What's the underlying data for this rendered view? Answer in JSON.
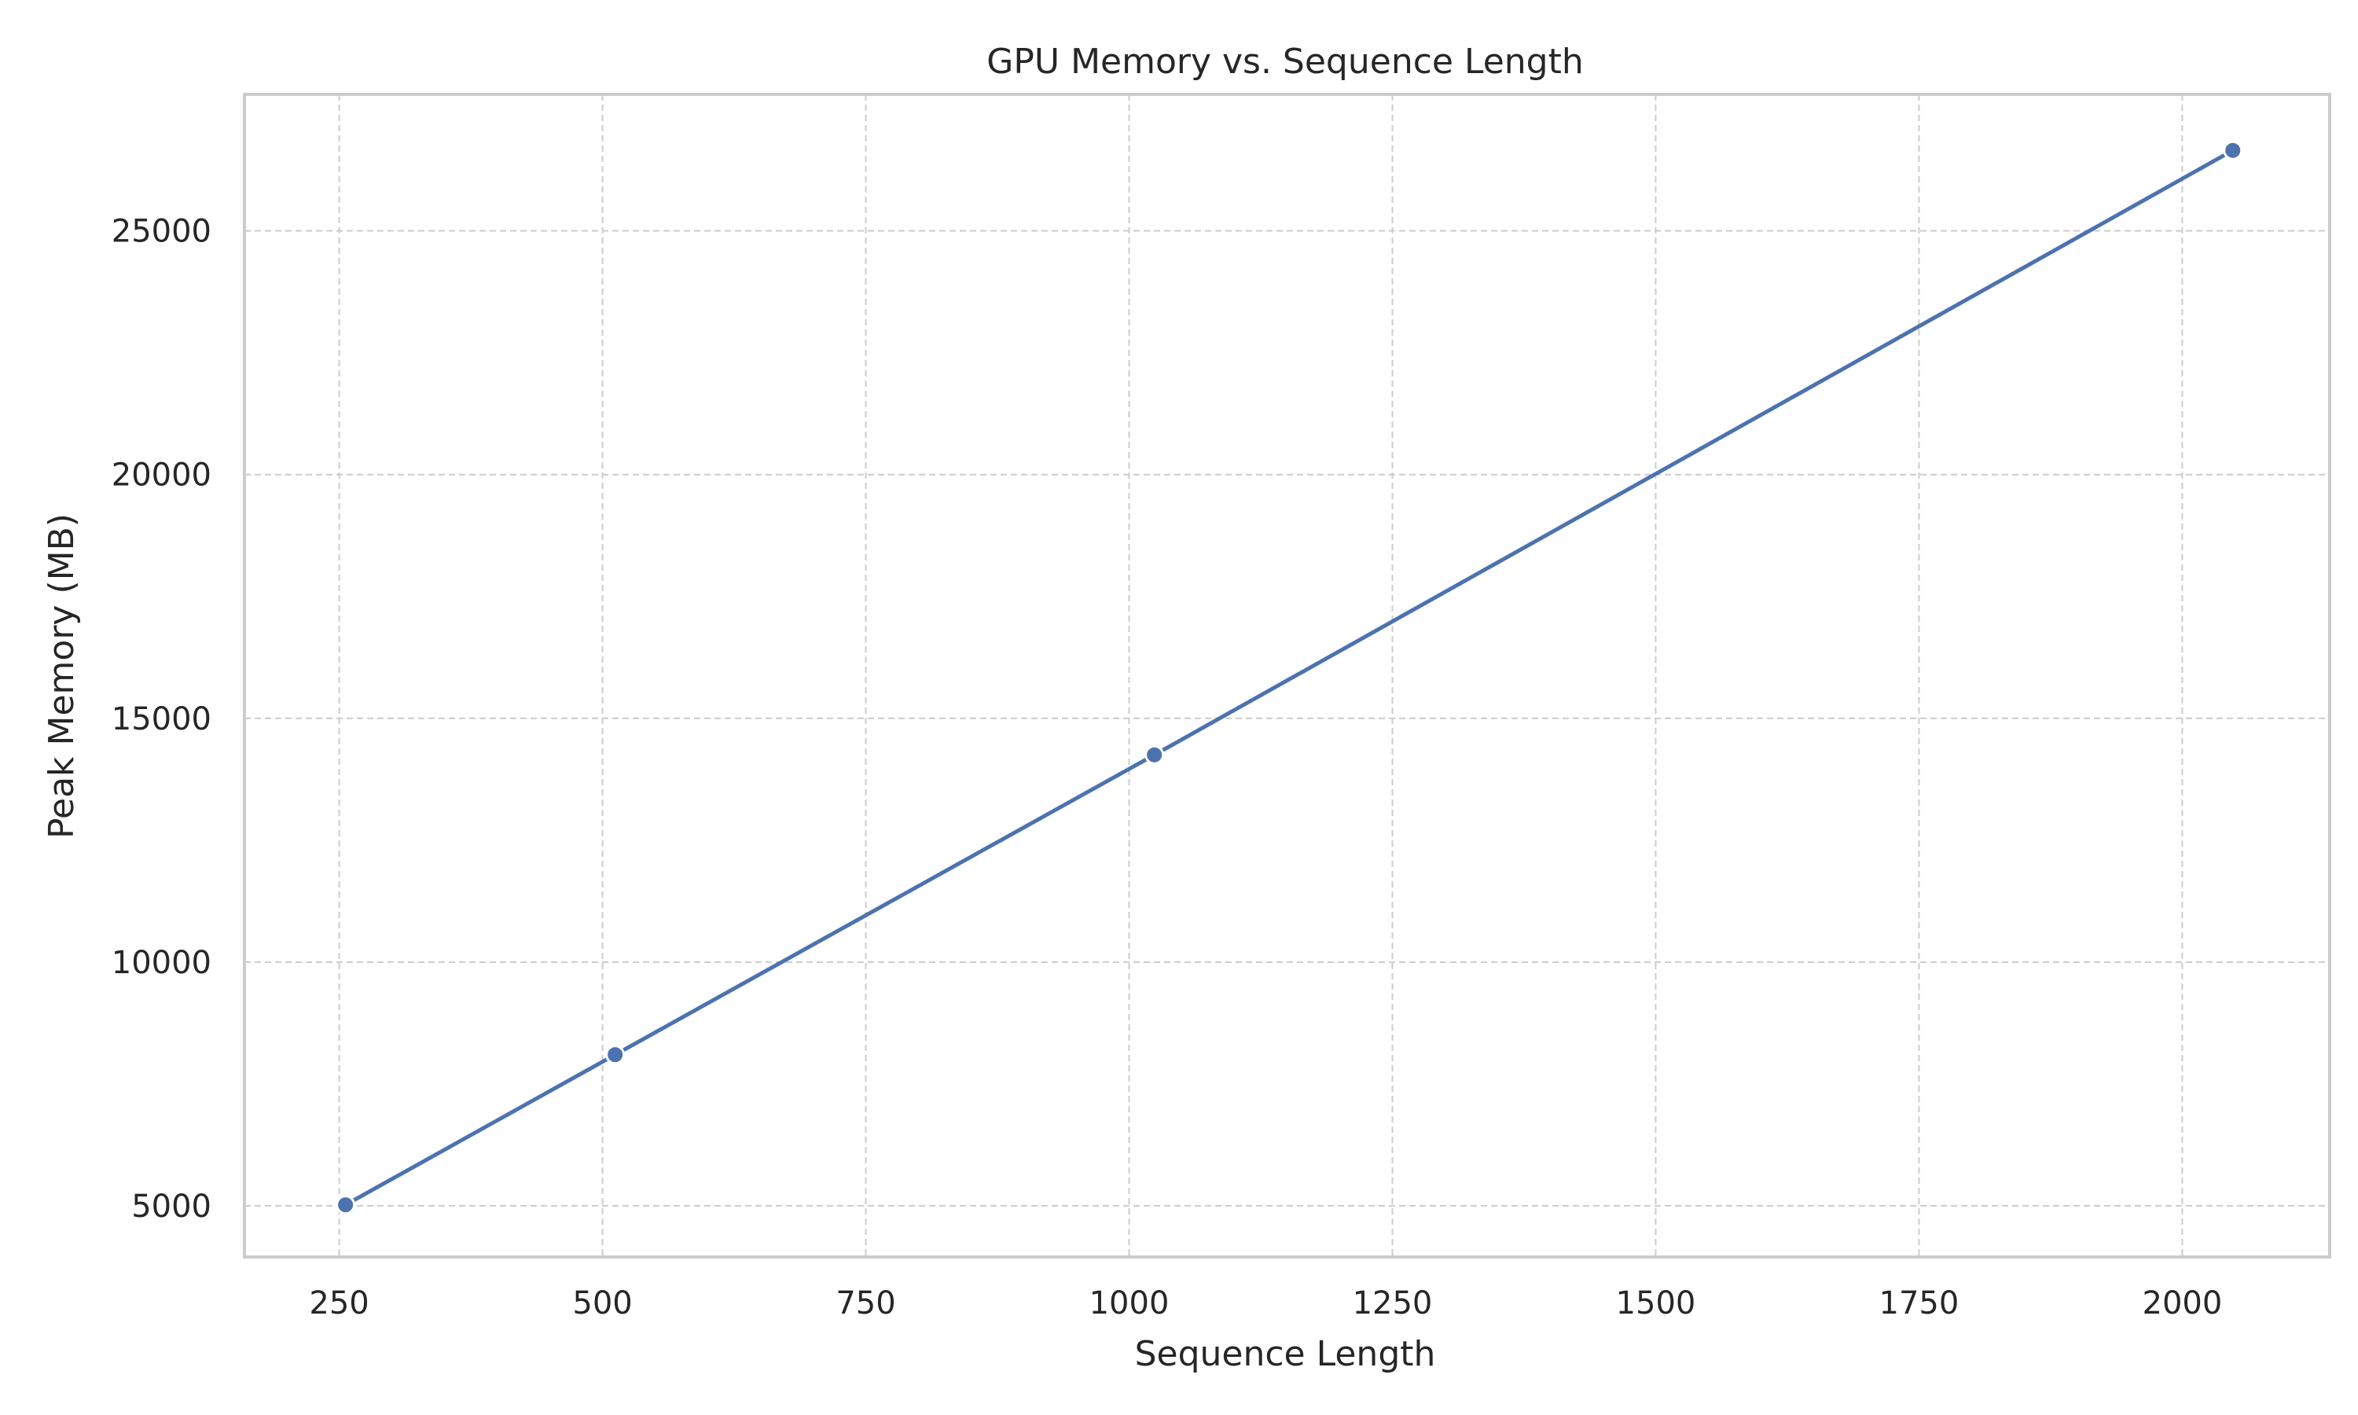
{
  "chart_data": {
    "type": "line",
    "title": "GPU Memory vs. Sequence Length",
    "xlabel": "Sequence Length",
    "ylabel": "Peak Memory (MB)",
    "xlim": [
      160,
      2140
    ],
    "ylim": [
      3950,
      27800
    ],
    "xticks": [
      250,
      500,
      750,
      1000,
      1250,
      1500,
      1750,
      2000
    ],
    "yticks": [
      5000,
      10000,
      15000,
      20000,
      25000
    ],
    "grid": true,
    "series": [
      {
        "color": "#4c72b0",
        "x": [
          256,
          512,
          1024,
          2048
        ],
        "y": [
          5020,
          8100,
          14250,
          26650
        ]
      }
    ]
  }
}
